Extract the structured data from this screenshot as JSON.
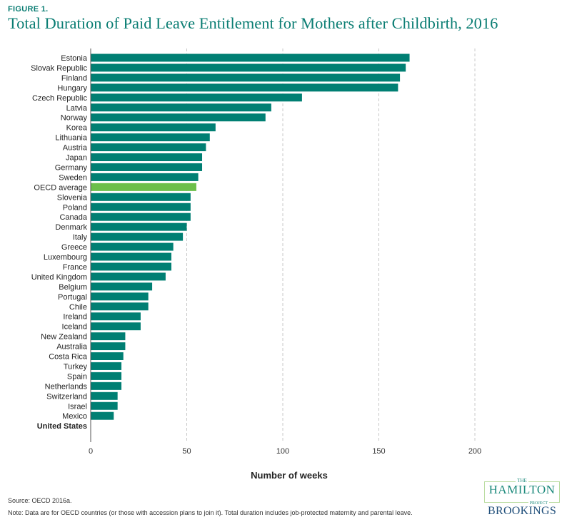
{
  "figure_label": "FIGURE 1.",
  "footer": {
    "source": "Source: OECD 2016a.",
    "note": "Note: Data are for OECD countries (or those with accession plans to join it). Total duration includes job-protected maternity and parental leave.",
    "logo_the": "THE",
    "logo_hamilton": "HAMILTON",
    "logo_project": "PROJECT",
    "logo_brookings": "BROOKINGS"
  },
  "colors": {
    "bar": "#007f73",
    "highlight": "#6cbf4a",
    "title": "#0a7d73"
  },
  "chart_data": {
    "type": "bar",
    "orientation": "horizontal",
    "title": "Total Duration of Paid Leave Entitlement for Mothers after Childbirth, 2016",
    "xlabel": "Number of weeks",
    "ylabel": "",
    "xlim": [
      0,
      200
    ],
    "xticks": [
      0,
      50,
      100,
      150,
      200
    ],
    "grid": "vertical dashed",
    "highlight": "OECD average",
    "bold_label": "United States",
    "categories": [
      "Estonia",
      "Slovak Republic",
      "Finland",
      "Hungary",
      "Czech Republic",
      "Latvia",
      "Norway",
      "Korea",
      "Lithuania",
      "Austria",
      "Japan",
      "Germany",
      "Sweden",
      "OECD average",
      "Slovenia",
      "Poland",
      "Canada",
      "Denmark",
      "Italy",
      "Greece",
      "Luxembourg",
      "France",
      "United Kingdom",
      "Belgium",
      "Portugal",
      "Chile",
      "Ireland",
      "Iceland",
      "New Zealand",
      "Australia",
      "Costa Rica",
      "Turkey",
      "Spain",
      "Netherlands",
      "Switzerland",
      "Israel",
      "Mexico",
      "United States"
    ],
    "values": [
      166,
      164,
      161,
      160,
      110,
      94,
      91,
      65,
      62,
      60,
      58,
      58,
      56,
      55,
      52,
      52,
      52,
      50,
      48,
      43,
      42,
      42,
      39,
      32,
      30,
      30,
      26,
      26,
      18,
      18,
      17,
      16,
      16,
      16,
      14,
      14,
      12,
      0
    ]
  }
}
